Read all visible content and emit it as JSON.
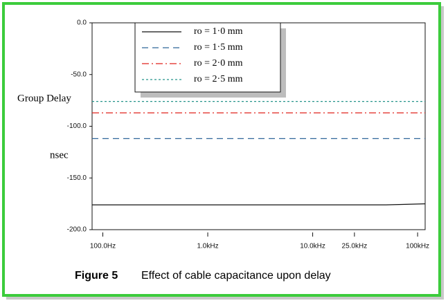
{
  "chart_data": {
    "type": "line",
    "y_label_top": "Group Delay",
    "y_label_bottom": "nsec",
    "caption_label": "Figure 5",
    "caption": "Effect of cable capacitance upon delay",
    "x": [
      79,
      50000,
      118000
    ],
    "series": [
      {
        "name": "ro = 1·0 mm",
        "color": "#111111",
        "dash": "",
        "values": [
          -176,
          -176,
          -175
        ]
      },
      {
        "name": "ro = 1·5 mm",
        "color": "#2f6699",
        "dash": "9 6",
        "values": [
          -112,
          -112,
          -112
        ]
      },
      {
        "name": "ro = 2·0 mm",
        "color": "#e0201a",
        "dash": "10 4 2 4",
        "values": [
          -87,
          -87,
          -87
        ]
      },
      {
        "name": "ro = 2·5 mm",
        "color": "#24938a",
        "dash": "3 3",
        "values": [
          -76,
          -76,
          -76
        ]
      }
    ],
    "log_x": true,
    "xlim": [
      79,
      118000
    ],
    "xticks": [
      {
        "value": 100,
        "label": "100.0Hz"
      },
      {
        "value": 1000,
        "label": "1.0kHz"
      },
      {
        "value": 10000,
        "label": "10.0kHz"
      },
      {
        "value": 25000,
        "label": "25.0kHz"
      },
      {
        "value": 100000,
        "label": "100kHz"
      }
    ],
    "ylim": [
      -200,
      0
    ],
    "yticks": [
      {
        "value": 0,
        "label": "0.0"
      },
      {
        "value": -50,
        "label": "-50.0"
      },
      {
        "value": -100,
        "label": "-100.0"
      },
      {
        "value": -150,
        "label": "-150.0"
      },
      {
        "value": -200,
        "label": "-200.0"
      }
    ]
  }
}
